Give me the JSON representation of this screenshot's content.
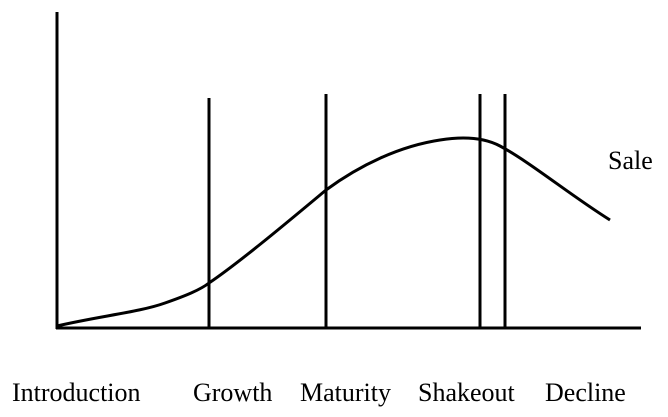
{
  "curve_label": "Sale",
  "stages": [
    "Introduction",
    "Growth",
    "Maturity",
    "Shakeout",
    "Decline"
  ]
}
